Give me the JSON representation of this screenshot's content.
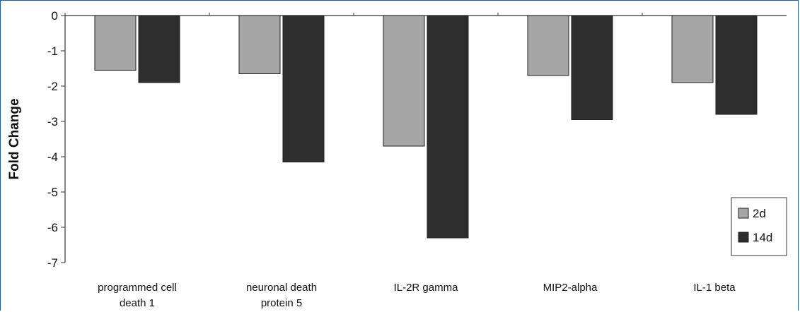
{
  "chart_data": {
    "type": "bar",
    "title": "",
    "xlabel": "",
    "ylabel": "Fold Change",
    "ylim": [
      -7,
      0
    ],
    "yticks": [
      0,
      -1,
      -2,
      -3,
      -4,
      -5,
      -6,
      -7
    ],
    "grid": false,
    "legend_position": "bottom-right",
    "categories": [
      [
        "programmed cell",
        "death 1"
      ],
      [
        "neuronal death",
        "protein 5"
      ],
      [
        "IL-2R gamma"
      ],
      [
        "MIP2-alpha"
      ],
      [
        "IL-1 beta"
      ]
    ],
    "series": [
      {
        "name": "2d",
        "color": "#a6a6a6",
        "values": [
          -1.55,
          -1.65,
          -3.7,
          -1.7,
          -1.9
        ]
      },
      {
        "name": "14d",
        "color": "#2e2e2e",
        "values": [
          -1.9,
          -4.15,
          -6.3,
          -2.95,
          -2.8
        ]
      }
    ]
  }
}
